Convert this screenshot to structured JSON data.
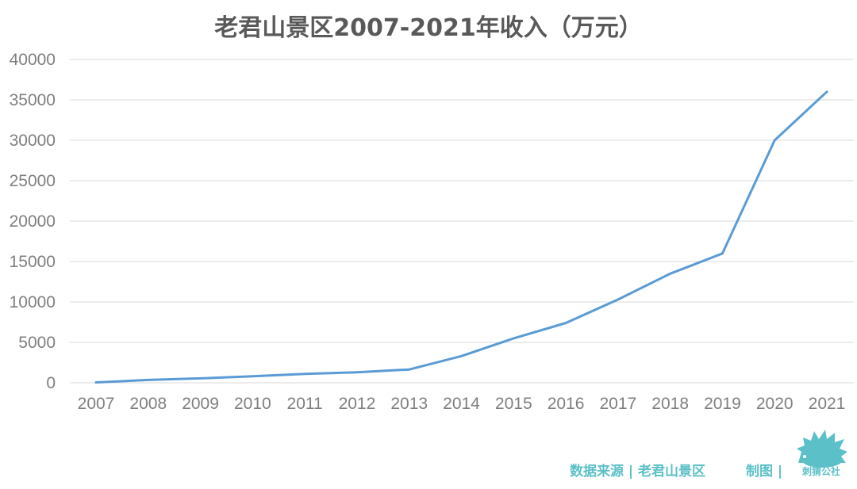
{
  "chart_data": {
    "type": "line",
    "title": "老君山景区2007-2021年收入（万元）",
    "xlabel": "",
    "ylabel": "",
    "ylim": [
      0,
      40000
    ],
    "yticks": [
      "0",
      "5000",
      "10000",
      "15000",
      "20000",
      "25000",
      "30000",
      "35000",
      "40000"
    ],
    "categories": [
      "2007",
      "2008",
      "2009",
      "2010",
      "2011",
      "2012",
      "2013",
      "2014",
      "2015",
      "2016",
      "2017",
      "2018",
      "2019",
      "2020",
      "2021"
    ],
    "series": [
      {
        "name": "收入",
        "values": [
          50,
          350,
          550,
          800,
          1100,
          1300,
          1650,
          3300,
          5500,
          7400,
          10300,
          13500,
          16000,
          30000,
          36000
        ]
      }
    ],
    "grid": true,
    "legend": "none",
    "line_color": "#5b9bd5",
    "grid_color": "#d9d9d9",
    "tick_color": "#7f7f7f"
  },
  "footer": {
    "source": "数据来源 | 老君山景区",
    "credit": "制图 |",
    "logo_text": "刺猬公社",
    "accent": "#5bc0c8"
  }
}
